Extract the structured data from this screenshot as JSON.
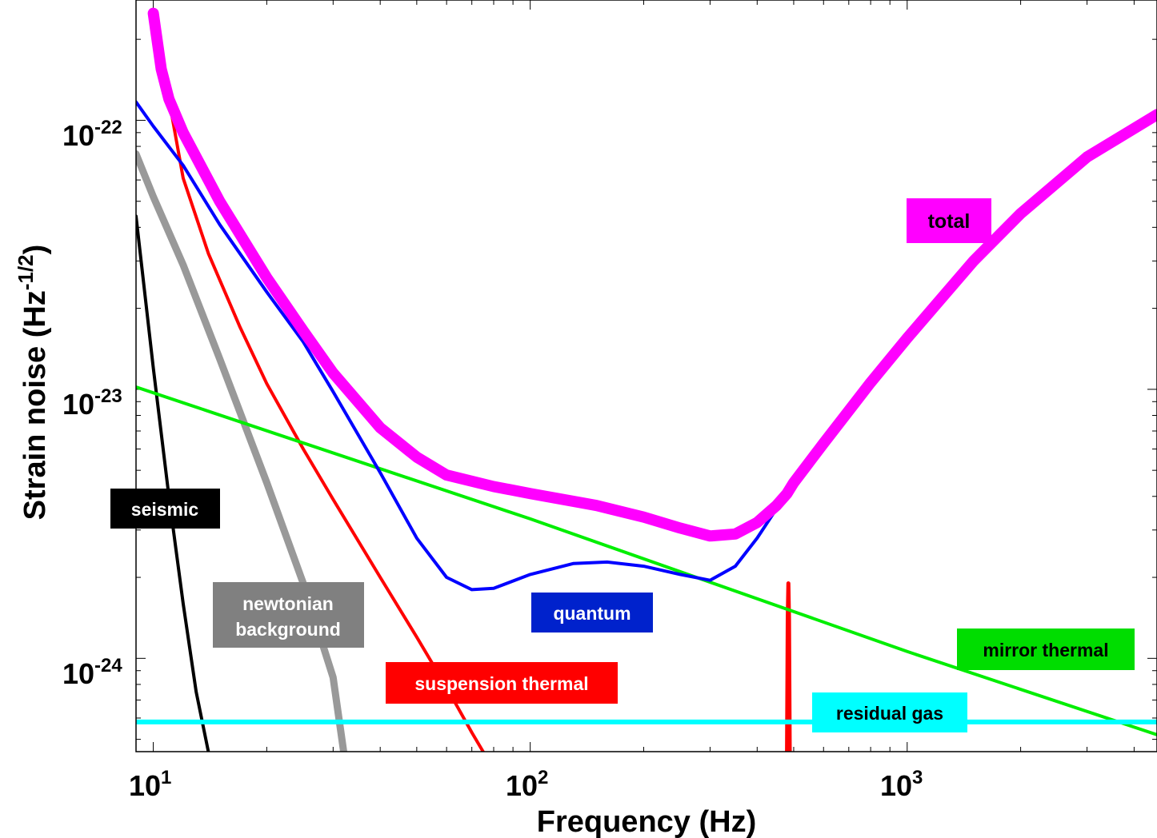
{
  "chart_data": {
    "type": "line",
    "xlabel": "Frequency (Hz)",
    "ylabel": "Strain noise (Hz",
    "ylabel_exp": "-1/2",
    "ylabel_close": ")",
    "xscale": "log",
    "yscale": "log",
    "xlim": [
      9,
      4600
    ],
    "ylim": [
      4.5e-25,
      2.8e-22
    ],
    "x_ticks": [
      {
        "value": 10,
        "base": "10",
        "exp": "1"
      },
      {
        "value": 100,
        "base": "10",
        "exp": "2"
      },
      {
        "value": 1000,
        "base": "10",
        "exp": "3"
      }
    ],
    "y_ticks": [
      {
        "value": 1e-24,
        "base": "10",
        "exp": "-24"
      },
      {
        "value": 1e-23,
        "base": "10",
        "exp": "-23"
      },
      {
        "value": 1e-22,
        "base": "10",
        "exp": "-22"
      }
    ],
    "series": [
      {
        "key": "newtonian",
        "color": "#999999",
        "width": 9,
        "x": [
          9,
          10,
          12,
          15,
          20,
          25,
          30,
          32
        ],
        "y": [
          7.5e-23,
          5.2e-23,
          2.9e-23,
          1.3e-23,
          4.5e-24,
          1.9e-24,
          8.5e-25,
          4.5e-25
        ]
      },
      {
        "key": "seismic",
        "color": "#000000",
        "width": 4,
        "x": [
          9,
          10,
          11,
          12,
          13,
          14
        ],
        "y": [
          4.4e-23,
          1.2e-23,
          4e-24,
          1.6e-24,
          7.5e-25,
          4.5e-25
        ]
      },
      {
        "key": "suspension",
        "color": "#ff0000",
        "width": 4,
        "x": [
          11,
          12,
          14,
          17,
          20,
          25,
          30,
          40,
          50,
          60,
          70,
          75
        ],
        "y": [
          1.2e-22,
          6.1e-23,
          3.2e-23,
          1.7e-23,
          1.05e-23,
          6e-24,
          3.9e-24,
          2e-24,
          1.2e-24,
          7.8e-25,
          5.3e-25,
          4.5e-25
        ]
      },
      {
        "key": "suspension-violin",
        "color": "#ff0000",
        "width": 5,
        "x": [
          480,
          482,
          484,
          486,
          488
        ],
        "y": [
          4.5e-25,
          1.4e-24,
          1.9e-24,
          1.4e-24,
          4.5e-25
        ]
      },
      {
        "key": "mirror",
        "color": "#00ee00",
        "width": 4,
        "x": [
          9,
          100,
          1000,
          4600
        ],
        "y": [
          1.02e-23,
          3.3e-24,
          1.06e-24,
          5.2e-25
        ]
      },
      {
        "key": "gas",
        "color": "#00ffff",
        "width": 6,
        "x": [
          9,
          4600
        ],
        "y": [
          5.8e-25,
          5.8e-25
        ]
      },
      {
        "key": "quantum",
        "color": "#0000ff",
        "width": 4,
        "x": [
          9,
          10,
          12,
          15,
          20,
          25,
          30,
          40,
          50,
          60,
          70,
          80,
          100,
          130,
          160,
          200,
          250,
          300,
          350,
          400,
          500,
          600
        ],
        "y": [
          1.17e-22,
          9.5e-23,
          6.8e-23,
          4.1e-23,
          2.3e-23,
          1.5e-23,
          9.8e-24,
          4.9e-24,
          2.8e-24,
          2e-24,
          1.8e-24,
          1.82e-24,
          2.05e-24,
          2.25e-24,
          2.28e-24,
          2.2e-24,
          2.05e-24,
          1.95e-24,
          2.2e-24,
          2.8e-24,
          4.5e-24,
          6.3e-24
        ]
      },
      {
        "key": "total",
        "color": "#ff00ff",
        "width": 14,
        "x": [
          10,
          10.5,
          11,
          12,
          15,
          20,
          25,
          30,
          40,
          50,
          60,
          80,
          100,
          150,
          200,
          250,
          300,
          350,
          400,
          450,
          480,
          500,
          600,
          800,
          1000,
          1500,
          2000,
          3000,
          4600
        ],
        "y": [
          2.5e-22,
          1.55e-22,
          1.2e-22,
          9e-23,
          5e-23,
          2.6e-23,
          1.65e-23,
          1.15e-23,
          7.2e-24,
          5.6e-24,
          4.8e-24,
          4.35e-24,
          4.1e-24,
          3.7e-24,
          3.35e-24,
          3.05e-24,
          2.85e-24,
          2.9e-24,
          3.2e-24,
          3.7e-24,
          4.1e-24,
          4.5e-24,
          6.3e-24,
          1.06e-23,
          1.55e-23,
          3e-23,
          4.5e-23,
          7.3e-23,
          1.05e-22
        ]
      }
    ]
  },
  "labels": {
    "seismic": "seismic",
    "newtonian_line1": "newtonian",
    "newtonian_line2": "background",
    "quantum": "quantum",
    "suspension": "suspension thermal",
    "mirror": "mirror thermal",
    "gas": "residual gas",
    "total": "total"
  },
  "label_colors": {
    "seismic": "#000000",
    "newtonian": "#808080",
    "quantum": "#0022cc",
    "suspension": "#ff0000",
    "mirror": "#00dd00",
    "gas": "#00ffff",
    "total": "#ff00ff"
  },
  "label_text_colors": {
    "seismic": "#ffffff",
    "newtonian": "#ffffff",
    "quantum": "#ffffff",
    "suspension": "#ffffff",
    "mirror": "#000000",
    "gas": "#000000",
    "total": "#000000"
  }
}
